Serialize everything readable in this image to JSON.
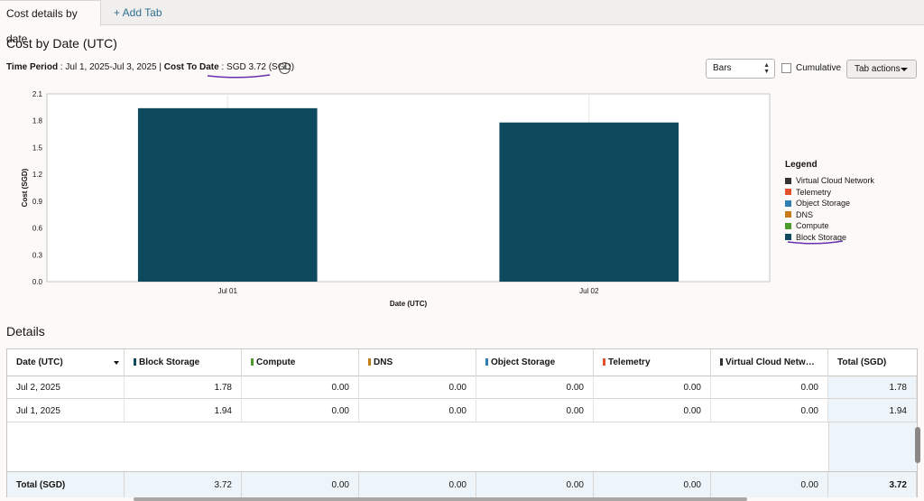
{
  "tabs": [
    {
      "label": "Cost details by date",
      "active": true
    },
    {
      "label": "+ Add Tab",
      "active": false
    }
  ],
  "page_title": "Cost by Date (UTC)",
  "meta": {
    "time_period_label": "Time Period",
    "time_period_value": ": Jul 1, 2025-Jul 3, 2025 |",
    "cost_to_date_label": "Cost To Date",
    "cost_to_date_sep": ":",
    "cost_to_date_value": "SGD 3.72 (SGD)",
    "info_icon": "info-icon"
  },
  "controls": {
    "chart_type_selected": "Bars",
    "cumulative_label": "Cumulative",
    "cumulative_checked": false,
    "tab_actions_label": "Tab actions"
  },
  "colors": {
    "block_storage": "#0d4a5e",
    "virtual_cloud_network": "#333333",
    "telemetry": "#e2512c",
    "object_storage": "#2c7fb0",
    "dns": "#c77b14",
    "compute": "#4c9a2a",
    "annotation": "#6a2fb0"
  },
  "chart_data": {
    "type": "bar",
    "categories": [
      "Jul 01",
      "Jul 02"
    ],
    "series": [
      {
        "name": "Block Storage",
        "values": [
          1.94,
          1.78
        ]
      }
    ],
    "xlabel": "Date (UTC)",
    "ylabel": "Cost (SGD)",
    "ylim": [
      0,
      2.1
    ],
    "yticks": [
      "0.0",
      "0.3",
      "0.6",
      "0.9",
      "1.2",
      "1.5",
      "1.8",
      "2.1"
    ],
    "grid": true,
    "legend_position": "right"
  },
  "legend": {
    "title": "Legend",
    "items": [
      {
        "label": "Virtual Cloud Network",
        "color": "#333333"
      },
      {
        "label": "Telemetry",
        "color": "#e2512c"
      },
      {
        "label": "Object Storage",
        "color": "#2c7fb0"
      },
      {
        "label": "DNS",
        "color": "#c77b14"
      },
      {
        "label": "Compute",
        "color": "#4c9a2a"
      },
      {
        "label": "Block Storage",
        "color": "#0d4a5e"
      }
    ]
  },
  "details": {
    "title": "Details",
    "columns": [
      {
        "label": "Date (UTC)",
        "color": null
      },
      {
        "label": "Block Storage",
        "color": "#0d4a5e"
      },
      {
        "label": "Compute",
        "color": "#4c9a2a"
      },
      {
        "label": "DNS",
        "color": "#c77b14"
      },
      {
        "label": "Object Storage",
        "color": "#2c7fb0"
      },
      {
        "label": "Telemetry",
        "color": "#e2512c"
      },
      {
        "label": "Virtual Cloud Netw…",
        "color": "#333333"
      },
      {
        "label": "Total (SGD)",
        "color": null
      }
    ],
    "rows": [
      [
        "Jul 2, 2025",
        "1.78",
        "0.00",
        "0.00",
        "0.00",
        "0.00",
        "0.00",
        "1.78"
      ],
      [
        "Jul 1, 2025",
        "1.94",
        "0.00",
        "0.00",
        "0.00",
        "0.00",
        "0.00",
        "1.94"
      ]
    ],
    "total_row": [
      "Total (SGD)",
      "3.72",
      "0.00",
      "0.00",
      "0.00",
      "0.00",
      "0.00",
      "3.72"
    ]
  }
}
